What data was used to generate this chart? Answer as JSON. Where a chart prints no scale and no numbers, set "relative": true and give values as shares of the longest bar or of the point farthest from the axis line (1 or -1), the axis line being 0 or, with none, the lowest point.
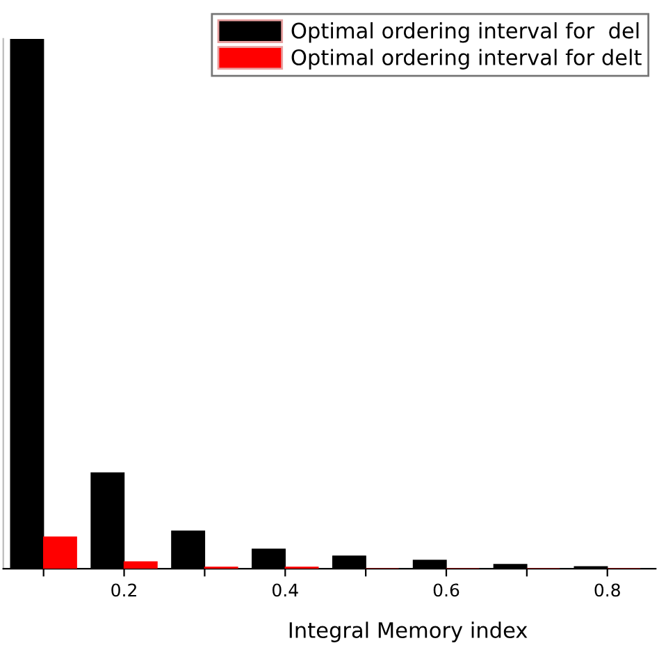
{
  "chart_data": {
    "type": "bar",
    "relative": true,
    "xlabel": "Integral Memory index",
    "categories": [
      null,
      "0.2",
      null,
      "0.4",
      null,
      "0.6",
      null,
      "0.8"
    ],
    "series": [
      {
        "name": "Optimal ordering interval for  del",
        "color": "#000000",
        "values": [
          1,
          0.181,
          0.071,
          0.037,
          0.024,
          0.016,
          0.008,
          0.004
        ]
      },
      {
        "name": "Optimal ordering interval for delt",
        "color": "#ff0000",
        "values": [
          0.06,
          0.013,
          0.003,
          0.003,
          0,
          0,
          0,
          0
        ]
      }
    ],
    "legend": "top right",
    "grid": false
  }
}
